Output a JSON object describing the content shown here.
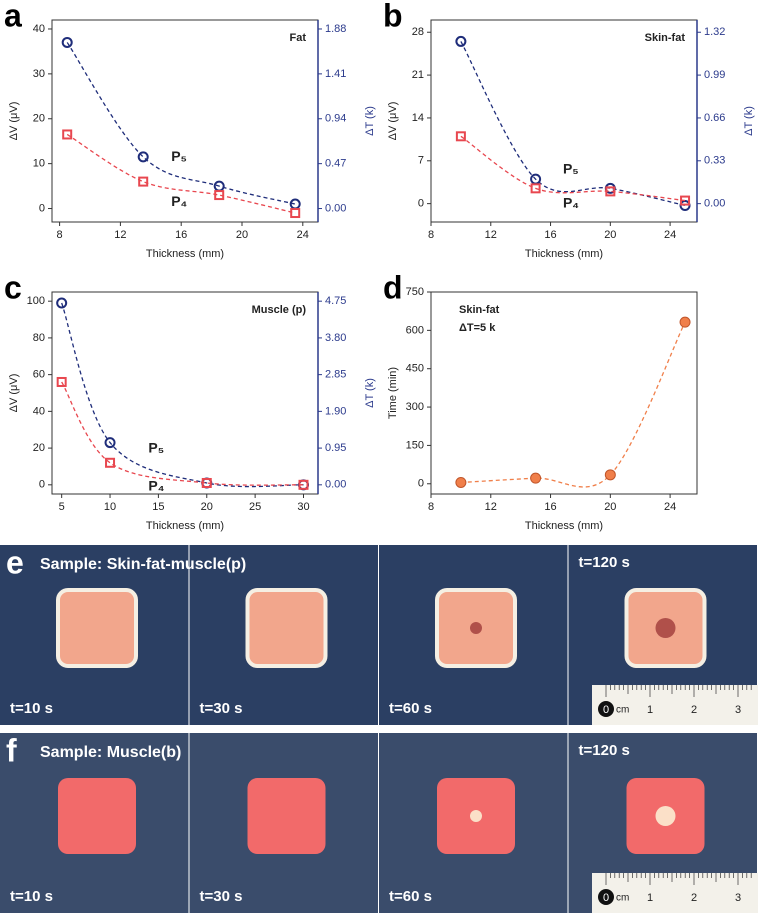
{
  "chart_data": [
    {
      "panel": "a",
      "type": "line",
      "title": "Fat",
      "x_label": "Thickness (mm)",
      "y_label": "ΔV (μV)",
      "y2_label": "ΔT (k)",
      "x": [
        8.5,
        13.5,
        18.5,
        23.5
      ],
      "series": [
        {
          "name": "P₅",
          "color": "#1f2d7a",
          "marker": "circle",
          "values": [
            37,
            11.5,
            5,
            1
          ]
        },
        {
          "name": "P₄",
          "color": "#e8474f",
          "marker": "square",
          "values": [
            16.5,
            6,
            3,
            -1
          ]
        }
      ],
      "xlim": [
        7.5,
        25
      ],
      "xticks": [
        8,
        12,
        16,
        20,
        24
      ],
      "ylim": [
        -3,
        42
      ],
      "yticks": [
        0,
        10,
        20,
        30,
        40
      ],
      "y2lim": [
        -0.141,
        1.974
      ],
      "y2ticks": [
        {
          "value": 0,
          "label": "0.00"
        },
        0.47,
        0.94,
        1.41,
        1.88
      ]
    },
    {
      "panel": "b",
      "type": "line",
      "title": "Skin-fat",
      "x_label": "Thickness (mm)",
      "y_label": "ΔV (μV)",
      "y2_label": "ΔT (k)",
      "x": [
        10,
        15,
        20,
        25
      ],
      "series": [
        {
          "name": "P₅",
          "color": "#1f2d7a",
          "marker": "circle",
          "values": [
            26.5,
            4,
            2.5,
            -0.3
          ]
        },
        {
          "name": "P₄",
          "color": "#e8474f",
          "marker": "square",
          "values": [
            11,
            2.5,
            2,
            0.5
          ]
        }
      ],
      "xlim": [
        8,
        25.8
      ],
      "xticks": [
        8,
        12,
        16,
        20,
        24
      ],
      "ylim": [
        -3,
        30
      ],
      "yticks": [
        0,
        7,
        14,
        21,
        28
      ],
      "y2lim": [
        -0.1414,
        1.4143
      ],
      "y2ticks": [
        {
          "value": 0,
          "label": "0.00"
        },
        0.33,
        0.66,
        0.99,
        1.32
      ]
    },
    {
      "panel": "c",
      "type": "line",
      "title": "Muscle (p)",
      "x_label": "Thickness (mm)",
      "y_label": "ΔV (μV)",
      "y2_label": "ΔT (k)",
      "x": [
        5,
        10,
        20,
        30
      ],
      "series": [
        {
          "name": "P₅",
          "color": "#1f2d7a",
          "marker": "circle",
          "values": [
            99,
            23,
            1,
            0
          ]
        },
        {
          "name": "P₄",
          "color": "#e8474f",
          "marker": "square",
          "values": [
            56,
            12,
            1,
            0
          ]
        }
      ],
      "xlim": [
        4,
        31.5
      ],
      "xticks": [
        5,
        10,
        15,
        20,
        25,
        30
      ],
      "ylim": [
        -5,
        105
      ],
      "yticks": [
        0,
        20,
        40,
        60,
        80,
        100
      ],
      "y2lim": [
        -0.2375,
        4.9875
      ],
      "y2ticks": [
        {
          "value": 0,
          "label": "0.00"
        },
        0.95,
        {
          "value": 1.9,
          "label": "1.90"
        },
        2.85,
        {
          "value": 3.8,
          "label": "3.80"
        },
        4.75
      ]
    },
    {
      "panel": "d",
      "type": "scatter",
      "title": "Skin-fat",
      "annotation": "ΔT=5 k",
      "x_label": "Thickness (mm)",
      "y_label": "Time (min)",
      "x": [
        10,
        15,
        20,
        25
      ],
      "values": [
        5,
        22,
        35,
        632
      ],
      "color": "#f07f4a",
      "xlim": [
        8,
        25.8
      ],
      "xticks": [
        8,
        12,
        16,
        20,
        24
      ],
      "ylim": [
        -40,
        750
      ],
      "yticks": [
        0,
        150,
        300,
        450,
        600,
        750
      ]
    }
  ],
  "photos": [
    {
      "panel": "e",
      "sample": "Sample: Skin-fat-muscle(p)",
      "frames": [
        "t=10 s",
        "t=30 s",
        "t=60 s",
        "t=120 s"
      ],
      "ruler": {
        "unit": "cm",
        "labels": [
          "0",
          "1",
          "2",
          "3"
        ]
      }
    },
    {
      "panel": "f",
      "sample": "Sample: Muscle(b)",
      "frames": [
        "t=10 s",
        "t=30 s",
        "t=60 s",
        "t=120 s"
      ],
      "ruler": {
        "unit": "cm",
        "labels": [
          "0",
          "1",
          "2",
          "3"
        ]
      }
    }
  ]
}
